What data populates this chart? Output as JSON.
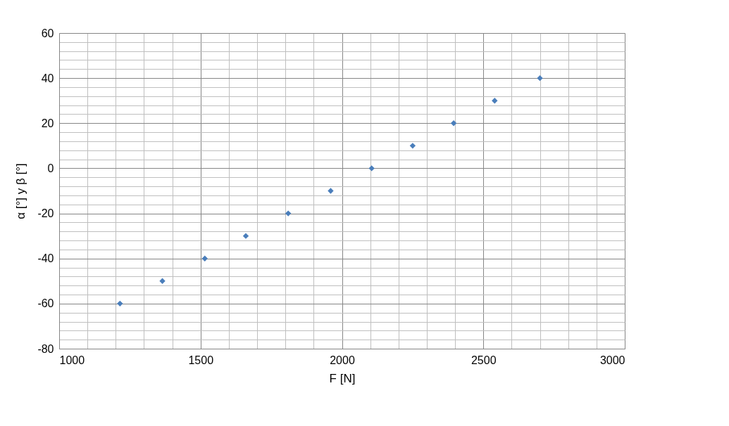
{
  "chart_data": {
    "type": "scatter",
    "xlabel": "F [N]",
    "ylabel": "α [°] y β [°]",
    "x": [
      1215,
      1365,
      1515,
      1660,
      1810,
      1960,
      2105,
      2250,
      2395,
      2540,
      2700
    ],
    "series": [
      {
        "color": "#4a7ebb",
        "values": [
          -60,
          -50,
          -40,
          -30,
          -20,
          -10,
          0,
          10,
          20,
          30,
          40
        ]
      }
    ],
    "marker": "diamond",
    "grid": true,
    "xlim": [
      1000,
      3000
    ],
    "xticks": [
      1000,
      {
        "value": 1100,
        "label": null
      },
      {
        "value": 1200,
        "label": null
      },
      {
        "value": 1300,
        "label": null
      },
      {
        "value": 1400,
        "label": null
      },
      1500,
      {
        "value": 1600,
        "label": null
      },
      {
        "value": 1700,
        "label": null
      },
      {
        "value": 1800,
        "label": null
      },
      {
        "value": 1900,
        "label": null
      },
      2000,
      {
        "value": 2100,
        "label": null
      },
      {
        "value": 2200,
        "label": null
      },
      {
        "value": 2300,
        "label": null
      },
      {
        "value": 2400,
        "label": null
      },
      2500,
      {
        "value": 2600,
        "label": null
      },
      {
        "value": 2700,
        "label": null
      },
      {
        "value": 2800,
        "label": null
      },
      {
        "value": 2900,
        "label": null
      },
      3000
    ],
    "ylim": [
      -80,
      60
    ],
    "yticks": [
      -80,
      {
        "value": -76,
        "label": null
      },
      {
        "value": -72,
        "label": null
      },
      {
        "value": -68,
        "label": null
      },
      {
        "value": -64,
        "label": null
      },
      -60,
      {
        "value": -56,
        "label": null
      },
      {
        "value": -52,
        "label": null
      },
      {
        "value": -48,
        "label": null
      },
      {
        "value": -44,
        "label": null
      },
      -40,
      {
        "value": -36,
        "label": null
      },
      {
        "value": -32,
        "label": null
      },
      {
        "value": -28,
        "label": null
      },
      {
        "value": -24,
        "label": null
      },
      -20,
      {
        "value": -16,
        "label": null
      },
      {
        "value": -12,
        "label": null
      },
      {
        "value": -8,
        "label": null
      },
      {
        "value": -4,
        "label": null
      },
      0,
      {
        "value": 4,
        "label": null
      },
      {
        "value": 8,
        "label": null
      },
      {
        "value": 12,
        "label": null
      },
      {
        "value": 16,
        "label": null
      },
      20,
      {
        "value": 24,
        "label": null
      },
      {
        "value": 28,
        "label": null
      },
      {
        "value": 32,
        "label": null
      },
      {
        "value": 36,
        "label": null
      },
      40,
      {
        "value": 44,
        "label": null
      },
      {
        "value": 48,
        "label": null
      },
      {
        "value": 52,
        "label": null
      },
      {
        "value": 56,
        "label": null
      },
      60
    ]
  }
}
